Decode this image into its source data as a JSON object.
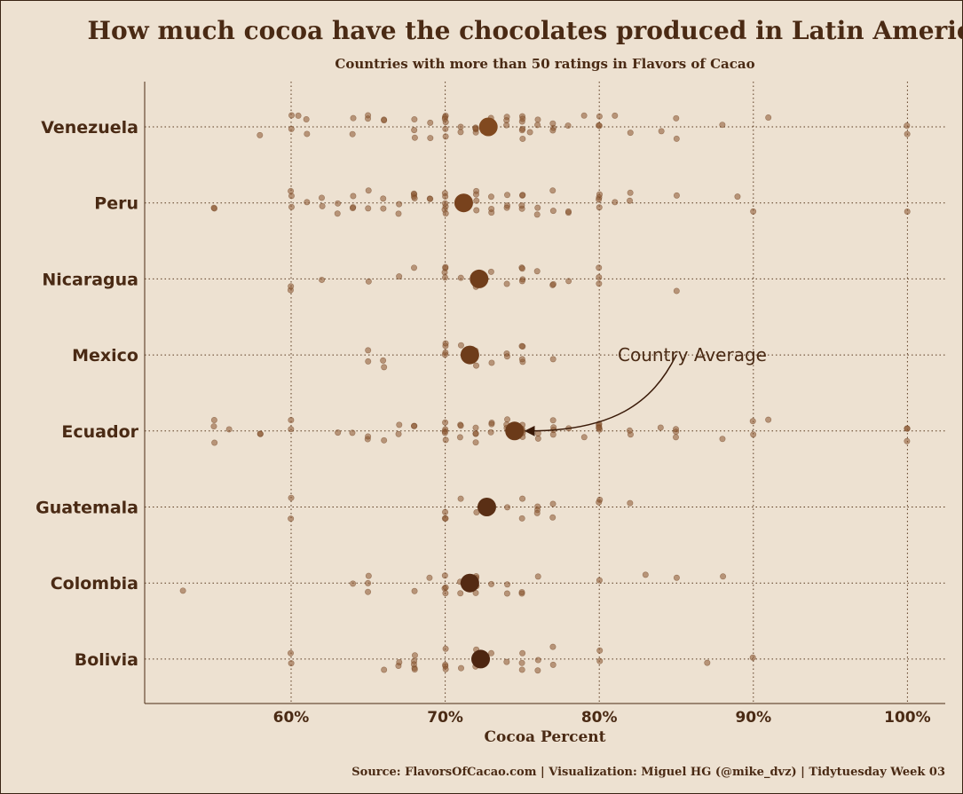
{
  "chart_data": {
    "type": "scatter",
    "title": "How much cocoa have the chocolates produced in Latin America?",
    "subtitle": "Countries with more than 50 ratings in Flavors of Cacao",
    "xlabel": "Cocoa Percent",
    "xlim": [
      50,
      102.5
    ],
    "x_ticks": [
      60,
      70,
      80,
      90,
      100
    ],
    "x_tick_labels": [
      "60%",
      "70%",
      "80%",
      "90%",
      "100%"
    ],
    "grid": true,
    "categories": [
      "Venezuela",
      "Peru",
      "Nicaragua",
      "Mexico",
      "Ecuador",
      "Guatemala",
      "Colombia",
      "Bolivia"
    ],
    "annotation": {
      "text": "Country Average",
      "target_category": "Ecuador",
      "target_value": 74.5
    },
    "caption": "Source: FlavorsOfCacao.com | Visualization: Miguel HG (@mike_dvz) | Tidytuesday Week 03",
    "colors": {
      "background": "#ede1d1",
      "points": "#8a5530",
      "average_light": "#8b4f22",
      "average_dark": "#4a2410",
      "text": "#4a2a14"
    },
    "series": [
      {
        "category": "Venezuela",
        "average": 72.8,
        "values": [
          58,
          60,
          60.5,
          60,
          61,
          61,
          64,
          64,
          65,
          65,
          66,
          66,
          68,
          68,
          68,
          69,
          69,
          70,
          70,
          70,
          70,
          70,
          70,
          71,
          71,
          72,
          72,
          72,
          72,
          72.5,
          73,
          73,
          73,
          74,
          74,
          74,
          75,
          75,
          75,
          75,
          75,
          75,
          75.5,
          76,
          76,
          77,
          77,
          77,
          78,
          79,
          80,
          80,
          80,
          81,
          82,
          84,
          85,
          85,
          88,
          91,
          100,
          100
        ]
      },
      {
        "category": "Peru",
        "average": 71.2,
        "values": [
          55,
          55,
          60,
          60,
          60,
          61,
          62,
          62,
          63,
          63,
          64,
          64,
          64,
          65,
          65,
          66,
          66,
          67,
          67,
          68,
          68,
          68,
          68,
          69,
          69,
          70,
          70,
          70,
          70,
          70,
          70,
          71,
          71,
          72,
          72,
          72,
          72,
          73,
          73,
          73,
          74,
          74,
          74,
          75,
          75,
          75,
          75,
          76,
          76,
          77,
          77,
          78,
          78,
          80,
          80,
          80,
          80,
          81,
          82,
          82,
          85,
          89,
          90,
          100
        ]
      },
      {
        "category": "Nicaragua",
        "average": 72.2,
        "values": [
          60,
          60,
          62,
          65,
          67,
          68,
          70,
          70,
          70,
          70,
          71,
          72,
          72,
          73,
          74,
          75,
          75,
          75,
          75,
          76,
          77,
          77,
          78,
          80,
          80,
          80,
          85
        ]
      },
      {
        "category": "Mexico",
        "average": 71.6,
        "values": [
          65,
          65,
          66,
          66,
          70,
          70,
          70,
          70,
          71,
          72,
          72,
          73,
          74,
          74,
          75,
          75,
          75,
          75,
          77
        ]
      },
      {
        "category": "Ecuador",
        "average": 74.5,
        "values": [
          55,
          55,
          55,
          56,
          58,
          58,
          60,
          60,
          63,
          64,
          65,
          65,
          66,
          67,
          67,
          68,
          68,
          70,
          70,
          70,
          70,
          70,
          71,
          71,
          71,
          72,
          72,
          72,
          72,
          73,
          73,
          73,
          74,
          74,
          74,
          75,
          75,
          75,
          75,
          75,
          76,
          76,
          77,
          77,
          77,
          77,
          78,
          79,
          80,
          80,
          80,
          80,
          80,
          82,
          82,
          84,
          85,
          85,
          85,
          88,
          90,
          90,
          91,
          100,
          100,
          100
        ]
      },
      {
        "category": "Guatemala",
        "average": 72.7,
        "values": [
          60,
          60,
          70,
          70,
          70,
          71,
          72,
          74,
          75,
          75,
          76,
          76,
          76,
          77,
          77,
          80,
          80,
          82
        ]
      },
      {
        "category": "Colombia",
        "average": 71.6,
        "values": [
          53,
          64,
          65,
          65,
          65,
          68,
          69,
          70,
          70,
          70,
          70,
          71,
          71,
          72,
          72,
          72,
          72,
          72,
          73,
          74,
          74,
          75,
          75,
          76,
          80,
          83,
          85,
          88
        ]
      },
      {
        "category": "Bolivia",
        "average": 72.3,
        "values": [
          60,
          60,
          66,
          67,
          67,
          68,
          68,
          68,
          68,
          68,
          70,
          70,
          70,
          70,
          71,
          72,
          72,
          72,
          72,
          73,
          74,
          75,
          75,
          75,
          76,
          76,
          77,
          77,
          80,
          80,
          87,
          90
        ]
      }
    ]
  }
}
